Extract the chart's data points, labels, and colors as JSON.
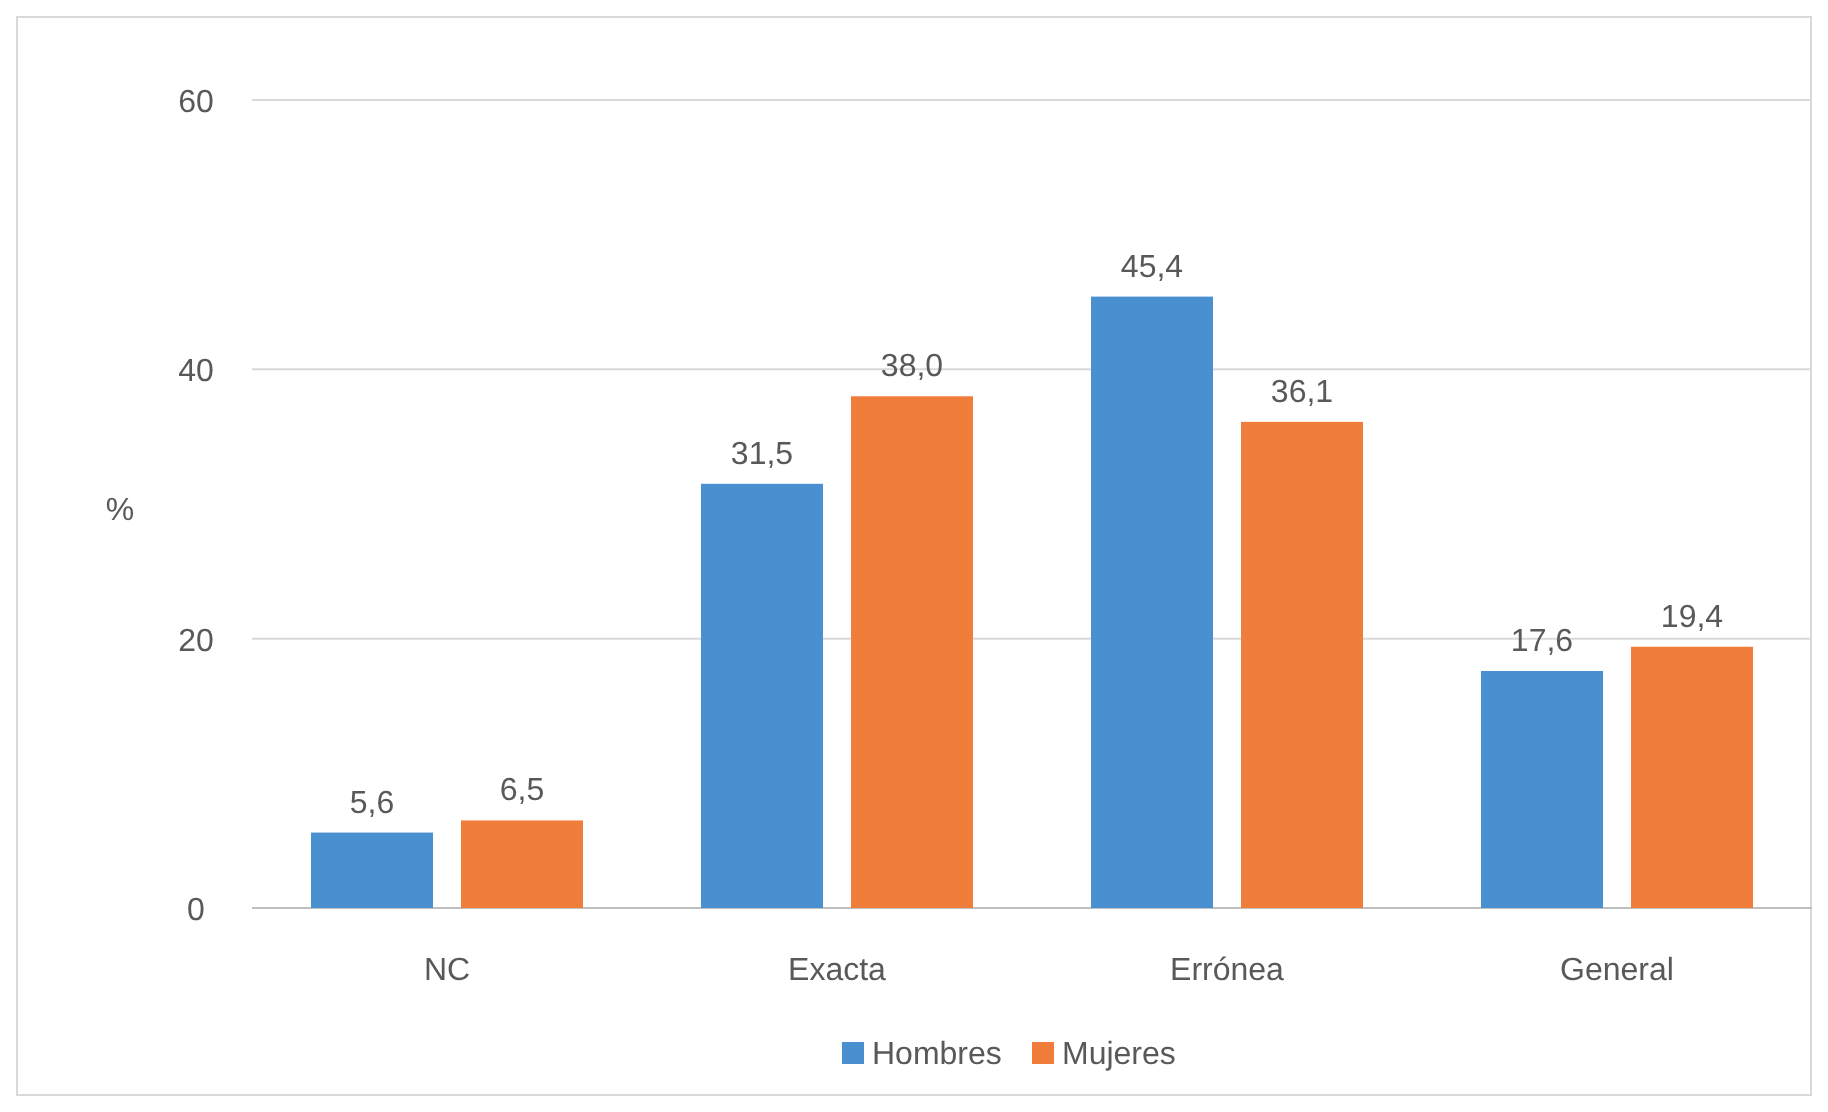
{
  "chart_data": {
    "type": "bar",
    "ylabel": "%",
    "categories": [
      "NC",
      "Exacta",
      "Errónea",
      "General"
    ],
    "series": [
      {
        "name": "Hombres",
        "color": "#4a8fd0",
        "values": [
          5.6,
          31.5,
          45.4,
          17.6
        ],
        "value_labels": [
          "5,6",
          "31,5",
          "45,4",
          "17,6"
        ]
      },
      {
        "name": "Mujeres",
        "color": "#f07d3a",
        "values": [
          6.5,
          38.0,
          36.1,
          19.4
        ],
        "value_labels": [
          "6,5",
          "38,0",
          "36,1",
          "19,4"
        ]
      }
    ],
    "ylim": [
      0,
      60
    ],
    "yticks": [
      0,
      20,
      40,
      60
    ],
    "grid": "y",
    "legend": "bottom"
  }
}
